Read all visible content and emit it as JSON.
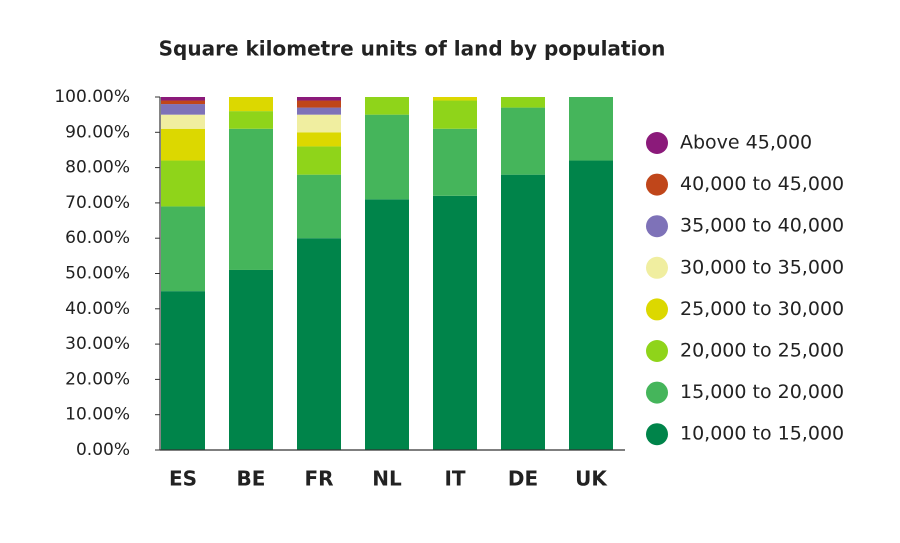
{
  "chart_data": {
    "type": "stacked_bar",
    "title": "Square kilometre units of land by population",
    "categories": [
      "ES",
      "BE",
      "FR",
      "NL",
      "IT",
      "DE",
      "UK"
    ],
    "series": [
      {
        "name": "10,000 to 15,000",
        "color": "#00844a",
        "values": [
          45,
          51,
          60,
          71,
          72,
          78,
          82
        ]
      },
      {
        "name": "15,000 to 20,000",
        "color": "#45b55b",
        "values": [
          24,
          40,
          18,
          24,
          19,
          19,
          18
        ]
      },
      {
        "name": "20,000 to 25,000",
        "color": "#8fd41a",
        "values": [
          13,
          5,
          8,
          5,
          8,
          3,
          0
        ]
      },
      {
        "name": "25,000 to 30,000",
        "color": "#dcd800",
        "values": [
          9,
          4,
          4,
          0,
          1,
          0,
          0
        ]
      },
      {
        "name": "30,000 to 35,000",
        "color": "#f0eea0",
        "values": [
          4,
          0,
          5,
          0,
          0,
          0,
          0
        ]
      },
      {
        "name": "35,000 to 40,000",
        "color": "#7e72b8",
        "values": [
          3,
          0,
          2,
          0,
          0,
          0,
          0
        ]
      },
      {
        "name": "40,000 to 45,000",
        "color": "#c0461a",
        "values": [
          1,
          0,
          2,
          0,
          0,
          0,
          0
        ]
      },
      {
        "name": "Above 45,000",
        "color": "#8b1a7a",
        "values": [
          1,
          0,
          1,
          0,
          0,
          0,
          0
        ]
      }
    ],
    "ylim": [
      0,
      100
    ],
    "yticks": [
      {
        "value": 0,
        "label": "0.00%"
      },
      {
        "value": 10,
        "label": "10.00%"
      },
      {
        "value": 20,
        "label": "20.00%"
      },
      {
        "value": 30,
        "label": "30.00%"
      },
      {
        "value": 40,
        "label": "40.00%"
      },
      {
        "value": 50,
        "label": "50.00%"
      },
      {
        "value": 60,
        "label": "60.00%"
      },
      {
        "value": 70,
        "label": "70.00%"
      },
      {
        "value": 80,
        "label": "80.00%"
      },
      {
        "value": 90,
        "label": "90.00%"
      },
      {
        "value": 100,
        "label": "100.00%"
      }
    ],
    "grid": false,
    "legend": "right"
  }
}
